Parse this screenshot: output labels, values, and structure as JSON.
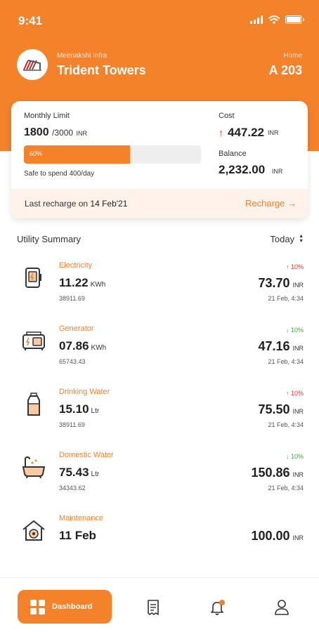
{
  "status_bar": {
    "time": "9:41"
  },
  "header": {
    "org_name": "Meenakshi Infra",
    "building_name": "Trident Towers",
    "home_label": "Home",
    "home_value": "A 203"
  },
  "limit_card": {
    "monthly_limit_label": "Monthly Limit",
    "used": "1800",
    "total": "/3000",
    "unit": "INR",
    "progress_percent": 60,
    "progress_label": "60%",
    "safe_to_spend": "Safe to spend 400/day",
    "cost_label": "Cost",
    "cost_value": "447.22",
    "cost_unit": "INR",
    "balance_label": "Balance",
    "balance_value": "2,232.00",
    "balance_unit": "INR",
    "last_recharge_text": "Last recharge on",
    "last_recharge_date": "14 Feb'21",
    "recharge_label": "Recharge",
    "recharge_arrow": "→"
  },
  "summary": {
    "title": "Utility Summary",
    "period": "Today",
    "items": [
      {
        "name": "Electricity",
        "value": "11.22",
        "unit": "KWh",
        "reading": "38911.69",
        "change": "10%",
        "change_dir": "up",
        "change_arrow": "↑",
        "amount": "73.70",
        "amount_unit": "INR",
        "time": "21 Feb, 4:34",
        "icon": "electricity-meter-icon"
      },
      {
        "name": "Generator",
        "value": "07.86",
        "unit": "KWh",
        "reading": "65743.43",
        "change": "10%",
        "change_dir": "down",
        "change_arrow": "↓",
        "amount": "47.16",
        "amount_unit": "INR",
        "time": "21 Feb, 4:34",
        "icon": "generator-icon"
      },
      {
        "name": "Drinking Water",
        "value": "15.10",
        "unit": "Ltr",
        "reading": "38911.69",
        "change": "10%",
        "change_dir": "up",
        "change_arrow": "↑",
        "amount": "75.50",
        "amount_unit": "INR",
        "time": "21 Feb, 4:34",
        "icon": "water-bottle-icon"
      },
      {
        "name": "Domestic Water",
        "value": "75.43",
        "unit": "Ltr",
        "reading": "34343.62",
        "change": "10%",
        "change_dir": "down",
        "change_arrow": "↓",
        "amount": "150.86",
        "amount_unit": "INR",
        "time": "21 Feb, 4:34",
        "icon": "bathtub-icon"
      },
      {
        "name": "Maintenance",
        "value": "11 Feb",
        "unit": "",
        "reading": "",
        "change": "",
        "change_dir": "",
        "change_arrow": "",
        "amount": "100.00",
        "amount_unit": "INR",
        "time": "",
        "icon": "maintenance-house-icon"
      }
    ]
  },
  "bottom_nav": {
    "dashboard_label": "Dashboard"
  },
  "colors": {
    "accent": "#f4822b",
    "up": "#e53935",
    "down": "#43a047"
  }
}
